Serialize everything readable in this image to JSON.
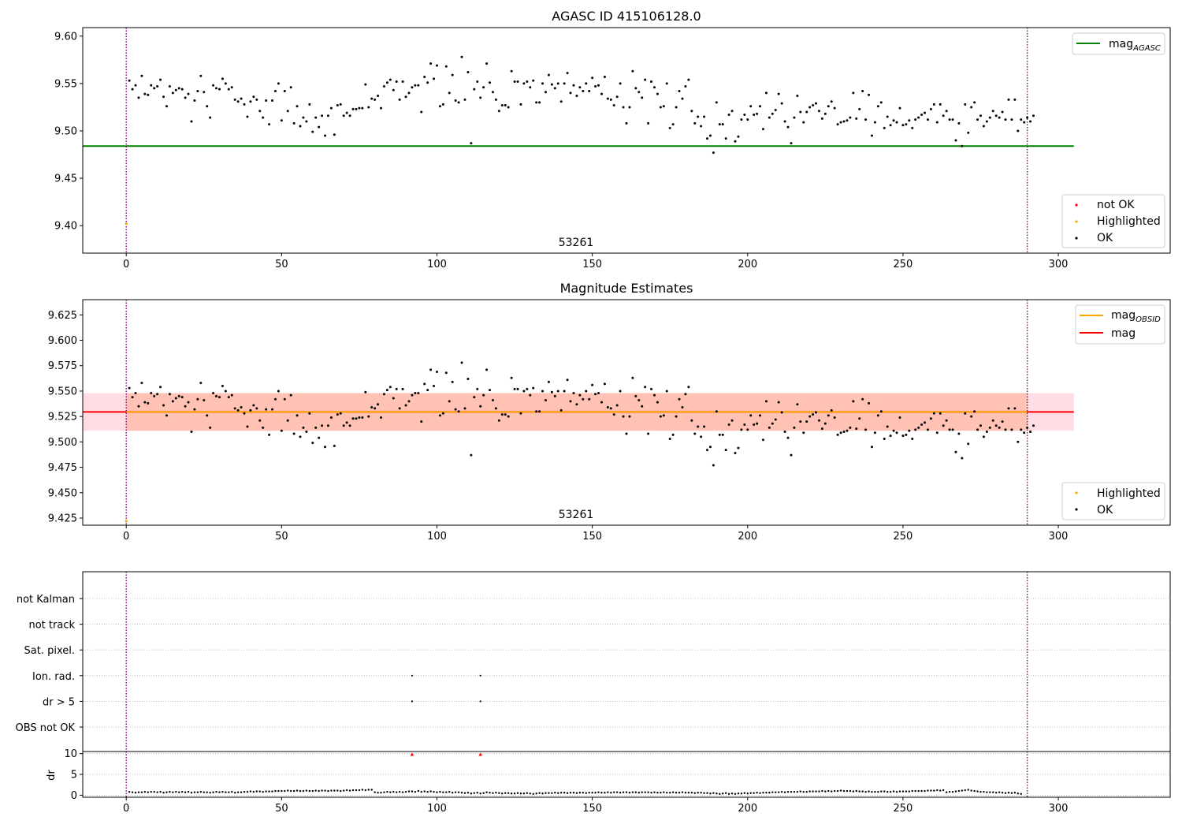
{
  "chart_data": [
    {
      "type": "scatter",
      "title": "AGASC ID 415106128.0",
      "xlabel": "",
      "ylabel": "",
      "xlim": [
        -14,
        336
      ],
      "ylim": [
        9.371,
        9.609
      ],
      "xticks": [
        0,
        50,
        100,
        150,
        200,
        250,
        300
      ],
      "yticks": [
        9.4,
        9.45,
        9.5,
        9.55,
        9.6
      ],
      "ytick_labels": [
        "9.40",
        "9.45",
        "9.50",
        "9.55",
        "9.60"
      ],
      "obsid_label": "53261",
      "reference_lines": [
        {
          "name": "mag_AGASC",
          "type": "horizontal",
          "y": 9.484,
          "x_range": [
            -14,
            305
          ],
          "color": "#008000"
        }
      ],
      "vertical_lines": [
        {
          "x": 0,
          "color": "#800080",
          "style": "dotted"
        },
        {
          "x": 290,
          "color": "#800080",
          "style": "dotted"
        }
      ],
      "series": [
        {
          "name": "not OK",
          "color": "#ff0000",
          "x": [],
          "y": []
        },
        {
          "name": "Highlighted",
          "color": "#ffa500",
          "x": [
            0
          ],
          "y": [
            9.402
          ]
        },
        {
          "name": "OK",
          "color": "#000000",
          "series_ref": "ok_mags"
        }
      ],
      "legend_top": {
        "position": "top-right",
        "entries": [
          {
            "label": "mag",
            "subscript": "AGASC",
            "color": "#008000",
            "kind": "line"
          }
        ]
      },
      "legend_bottom": {
        "position": "bottom-right",
        "entries": [
          {
            "label": "not OK",
            "color": "#ff0000",
            "kind": "marker"
          },
          {
            "label": "Highlighted",
            "color": "#ffa500",
            "kind": "marker"
          },
          {
            "label": "OK",
            "color": "#000000",
            "kind": "marker"
          }
        ]
      }
    },
    {
      "type": "scatter",
      "title": "Magnitude Estimates",
      "xlabel": "",
      "ylabel": "",
      "xlim": [
        -14,
        336
      ],
      "ylim": [
        9.418,
        9.64
      ],
      "xticks": [
        0,
        50,
        100,
        150,
        200,
        250,
        300
      ],
      "yticks": [
        9.425,
        9.45,
        9.475,
        9.5,
        9.525,
        9.55,
        9.575,
        9.6,
        9.625
      ],
      "ytick_labels": [
        "9.425",
        "9.450",
        "9.475",
        "9.500",
        "9.525",
        "9.550",
        "9.575",
        "9.600",
        "9.625"
      ],
      "obsid_label": "53261",
      "bands": [
        {
          "name": "mag band",
          "y_range": [
            9.511,
            9.548
          ],
          "x_range": [
            -14,
            305
          ],
          "color": "#ffb6c1",
          "opacity": 0.45
        },
        {
          "name": "mag_OBSID band",
          "y_range": [
            9.511,
            9.548
          ],
          "x_range": [
            0,
            290
          ],
          "color": "#ffa07a",
          "opacity": 0.45
        }
      ],
      "reference_lines": [
        {
          "name": "mag",
          "type": "horizontal",
          "y": 9.5295,
          "x_range": [
            -14,
            305
          ],
          "color": "#ff0000"
        },
        {
          "name": "mag_OBSID",
          "type": "horizontal",
          "y": 9.5295,
          "x_range": [
            0,
            290
          ],
          "color": "#ffa500"
        }
      ],
      "vertical_lines": [
        {
          "x": 0,
          "color": "#800080",
          "style": "dotted"
        },
        {
          "x": 290,
          "color": "#800080",
          "style": "dotted"
        }
      ],
      "series": [
        {
          "name": "Highlighted",
          "color": "#ffa500",
          "x": [
            0
          ],
          "y": [
            9.422
          ]
        },
        {
          "name": "OK",
          "color": "#000000",
          "series_ref": "ok_mags"
        }
      ],
      "legend_top": {
        "position": "top-right",
        "entries": [
          {
            "label": "mag",
            "subscript": "OBSID",
            "color": "#ffa500",
            "kind": "line"
          },
          {
            "label": "mag",
            "subscript": "",
            "color": "#ff0000",
            "kind": "line"
          }
        ]
      },
      "legend_bottom": {
        "position": "bottom-right",
        "entries": [
          {
            "label": "Highlighted",
            "color": "#ffa500",
            "kind": "marker"
          },
          {
            "label": "OK",
            "color": "#000000",
            "kind": "marker"
          }
        ]
      }
    },
    {
      "type": "scatter",
      "title": "",
      "xlim": [
        -14,
        336
      ],
      "flag_rows": [
        "not Kalman",
        "not track",
        "Sat. pixel.",
        "Ion. rad.",
        "dr > 5",
        "OBS not OK"
      ],
      "flag_points": [
        {
          "row": "Ion. rad.",
          "x": [
            92,
            114
          ]
        },
        {
          "row": "dr > 5",
          "x": [
            92,
            114
          ]
        }
      ],
      "vertical_lines": [
        {
          "x": 0,
          "color": "#800080",
          "style": "dotted"
        },
        {
          "x": 290,
          "color": "#800080",
          "style": "dotted"
        }
      ]
    },
    {
      "type": "scatter",
      "title": "",
      "xlabel": "",
      "ylabel": "dr",
      "xlim": [
        -14,
        336
      ],
      "ylim": [
        -0.5,
        10.5
      ],
      "xticks": [
        0,
        50,
        100,
        150,
        200,
        250,
        300
      ],
      "yticks": [
        0,
        5,
        10
      ],
      "ytick_labels": [
        "0",
        "5",
        "10"
      ],
      "dr_outliers": {
        "x": [
          92,
          114
        ],
        "y": [
          9.8,
          9.8
        ],
        "color": "#ff0000",
        "marker": "triangle"
      },
      "vertical_lines": [
        {
          "x": 0,
          "color": "#800080",
          "style": "dotted"
        },
        {
          "x": 290,
          "color": "#800080",
          "style": "dotted"
        }
      ]
    }
  ],
  "ok_mags": [
    9.553,
    9.544,
    9.548,
    9.535,
    9.558,
    9.539,
    9.538,
    9.548,
    9.545,
    9.547,
    9.554,
    9.536,
    9.526,
    9.547,
    9.54,
    9.543,
    9.545,
    9.544,
    9.535,
    9.539,
    9.51,
    9.532,
    9.542,
    9.558,
    9.541,
    9.526,
    9.514,
    9.548,
    9.545,
    9.544,
    9.555,
    9.55,
    9.544,
    9.546,
    9.533,
    9.531,
    9.534,
    9.528,
    9.515,
    9.531,
    9.536,
    9.533,
    9.521,
    9.514,
    9.532,
    9.507,
    9.532,
    9.542,
    9.55,
    9.511,
    9.542,
    9.521,
    9.546,
    9.508,
    9.526,
    9.505,
    9.514,
    9.51,
    9.528,
    9.499,
    9.514,
    9.504,
    9.516,
    9.495,
    9.516,
    9.524,
    9.496,
    9.527,
    9.528,
    9.516,
    9.519,
    9.516,
    9.523,
    9.523,
    9.524,
    9.524,
    9.549,
    9.525,
    9.534,
    9.533,
    9.537,
    9.524,
    9.547,
    9.551,
    9.554,
    9.543,
    9.552,
    9.533,
    9.552,
    9.536,
    9.54,
    9.546,
    9.548,
    9.548,
    9.52,
    9.557,
    9.551,
    9.571,
    9.555,
    9.569,
    9.526,
    9.528,
    9.568,
    9.54,
    9.559,
    9.532,
    9.53,
    9.578,
    9.533,
    9.562,
    9.487,
    9.544,
    9.552,
    9.535,
    9.546,
    9.571,
    9.551,
    9.541,
    9.533,
    9.521,
    9.527,
    9.527,
    9.525,
    9.563,
    9.552,
    9.552,
    9.528,
    9.55,
    9.552,
    9.546,
    9.553,
    9.53,
    9.53,
    9.55,
    9.541,
    9.559,
    9.549,
    9.545,
    9.55,
    9.531,
    9.55,
    9.561,
    9.54,
    9.548,
    9.537,
    9.546,
    9.542,
    9.55,
    9.542,
    9.556,
    9.547,
    9.548,
    9.539,
    9.557,
    9.534,
    9.533,
    9.527,
    9.536,
    9.55,
    9.525,
    9.508,
    9.525,
    9.563,
    9.545,
    9.541,
    9.535,
    9.554,
    9.508,
    9.552,
    9.546,
    9.539,
    9.525,
    9.526,
    9.55,
    9.503,
    9.507,
    9.525,
    9.542,
    9.534,
    9.547,
    9.554,
    9.521,
    9.508,
    9.515,
    9.505,
    9.515,
    9.492,
    9.495,
    9.477,
    9.53,
    9.507,
    9.507,
    9.492,
    9.517,
    9.521,
    9.489,
    9.494,
    9.512,
    9.517,
    9.512,
    9.526,
    9.517,
    9.518,
    9.526,
    9.502,
    9.54,
    9.514,
    9.518,
    9.522,
    9.539,
    9.529,
    9.51,
    9.504,
    9.487,
    9.514,
    9.537,
    9.52,
    9.509,
    9.52,
    9.525,
    9.527,
    9.529,
    9.521,
    9.513,
    9.518,
    9.526,
    9.531,
    9.524,
    9.507,
    9.509,
    9.51,
    9.511,
    9.514,
    9.54,
    9.513,
    9.523,
    9.542,
    9.512,
    9.538,
    9.495,
    9.509,
    9.526,
    9.53,
    9.503,
    9.515,
    9.506,
    9.511,
    9.509,
    9.524,
    9.506,
    9.507,
    9.511,
    9.503,
    9.512,
    9.514,
    9.517,
    9.519,
    9.512,
    9.523,
    9.528,
    9.509,
    9.528,
    9.516,
    9.521,
    9.512,
    9.512,
    9.49,
    9.508,
    9.484,
    9.528,
    9.498,
    9.525,
    9.53,
    9.512,
    9.516,
    9.505,
    9.51,
    9.514,
    9.521,
    9.516,
    9.514,
    9.52,
    9.512,
    9.533,
    9.512,
    9.533,
    9.5,
    9.512,
    9.509,
    9.514,
    9.51,
    9.516
  ],
  "dr_values": [
    0.8,
    0.7,
    0.6,
    0.7,
    0.7,
    0.8,
    0.7,
    0.8,
    0.8,
    0.7,
    0.8,
    0.6,
    0.7,
    0.8,
    0.7,
    0.8,
    0.7,
    0.8,
    0.7,
    0.8,
    0.6,
    0.7,
    0.7,
    0.8,
    0.7,
    0.7,
    0.6,
    0.7,
    0.8,
    0.7,
    0.8,
    0.7,
    0.7,
    0.8,
    0.6,
    0.7,
    0.7,
    0.8,
    0.8,
    0.9,
    0.8,
    0.9,
    0.9,
    0.8,
    0.9,
    0.9,
    0.9,
    1.0,
    1.0,
    1.0,
    1.0,
    1.1,
    1.0,
    1.0,
    1.1,
    1.0,
    1.0,
    1.1,
    1.0,
    1.0,
    1.1,
    1.0,
    1.1,
    1.1,
    1.0,
    1.1,
    1.1,
    1.1,
    1.0,
    1.1,
    1.2,
    1.1,
    1.2,
    1.2,
    1.2,
    1.3,
    1.2,
    1.3,
    1.3,
    0.7,
    0.6,
    0.6,
    0.7,
    0.8,
    0.7,
    0.8,
    0.7,
    0.8,
    0.7,
    0.8,
    0.9,
    0.9,
    0.8,
    1.0,
    0.8,
    0.9,
    0.8,
    0.9,
    0.8,
    0.7,
    0.8,
    0.7,
    0.7,
    0.8,
    0.6,
    0.7,
    0.7,
    0.6,
    0.5,
    0.6,
    0.4,
    0.5,
    0.6,
    0.4,
    0.5,
    0.7,
    0.6,
    0.5,
    0.6,
    0.5,
    0.4,
    0.5,
    0.5,
    0.4,
    0.4,
    0.5,
    0.4,
    0.4,
    0.5,
    0.4,
    0.3,
    0.4,
    0.5,
    0.4,
    0.5,
    0.5,
    0.5,
    0.6,
    0.5,
    0.6,
    0.6,
    0.5,
    0.6,
    0.6,
    0.5,
    0.6,
    0.6,
    0.5,
    0.6,
    0.6,
    0.6,
    0.7,
    0.6,
    0.6,
    0.7,
    0.6,
    0.7,
    0.7,
    0.6,
    0.7,
    0.7,
    0.6,
    0.7,
    0.7,
    0.6,
    0.7,
    0.7,
    0.7,
    0.6,
    0.7,
    0.6,
    0.6,
    0.7,
    0.6,
    0.6,
    0.7,
    0.6,
    0.6,
    0.7,
    0.6,
    0.6,
    0.6,
    0.5,
    0.6,
    0.6,
    0.5,
    0.5,
    0.4,
    0.5,
    0.4,
    0.3,
    0.4,
    0.5,
    0.3,
    0.4,
    0.3,
    0.4,
    0.4,
    0.5,
    0.4,
    0.5,
    0.5,
    0.6,
    0.5,
    0.6,
    0.6,
    0.6,
    0.7,
    0.7,
    0.7,
    0.8,
    0.7,
    0.8,
    0.8,
    0.8,
    0.8,
    0.9,
    0.8,
    0.8,
    0.9,
    0.9,
    0.9,
    0.9,
    1.0,
    0.9,
    1.0,
    0.9,
    1.0,
    1.0,
    1.1,
    1.0,
    1.0,
    1.0,
    0.9,
    1.0,
    0.9,
    0.9,
    0.8,
    0.9,
    0.8,
    0.8,
    0.8,
    0.9,
    0.9,
    0.8,
    0.8,
    0.9,
    0.8,
    0.9,
    0.9,
    0.9,
    0.9,
    1.0,
    1.0,
    1.0,
    1.0,
    1.0,
    1.1,
    1.1,
    1.1,
    1.2,
    1.1,
    1.2,
    0.7,
    0.8,
    0.8,
    0.9,
    1.0,
    1.1,
    1.2,
    1.3,
    1.1,
    1.0,
    0.9,
    0.8,
    0.8,
    0.7,
    0.7,
    0.7,
    0.6,
    0.7,
    0.6,
    0.5,
    0.6,
    0.5,
    0.6,
    0.4,
    0.3
  ]
}
